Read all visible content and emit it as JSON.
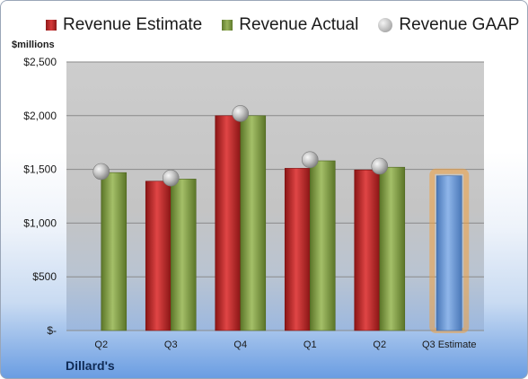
{
  "legend": {
    "estimate": "Revenue Estimate",
    "actual": "Revenue Actual",
    "gaap": "Revenue GAAP"
  },
  "unit_label": "$millions",
  "company": "Dillard's",
  "colors": {
    "estimate": "#c62828",
    "actual": "#8aa84b",
    "gaap": "#b8b8b8",
    "projection": "#6f9bd6",
    "projection_glow": "#f0a040"
  },
  "chart_data": {
    "type": "bar",
    "categories": [
      "Q2",
      "Q3",
      "Q4",
      "Q1",
      "Q2",
      "Q3 Estimate"
    ],
    "series": [
      {
        "name": "Revenue Estimate",
        "values": [
          null,
          1390,
          2000,
          1510,
          1495,
          1440
        ]
      },
      {
        "name": "Revenue Actual",
        "values": [
          1470,
          1410,
          2000,
          1580,
          1520,
          null
        ]
      },
      {
        "name": "Revenue GAAP",
        "values": [
          1480,
          1420,
          2020,
          1590,
          1530,
          null
        ]
      }
    ],
    "ylim": [
      0,
      2500
    ],
    "yticks": [
      0,
      500,
      1000,
      1500,
      2000,
      2500
    ],
    "ytick_labels": [
      "$-",
      "$500",
      "$1,000",
      "$1,500",
      "$2,000",
      "$2,500"
    ],
    "ylabel": "$millions",
    "grid": true,
    "legend_position": "top"
  }
}
